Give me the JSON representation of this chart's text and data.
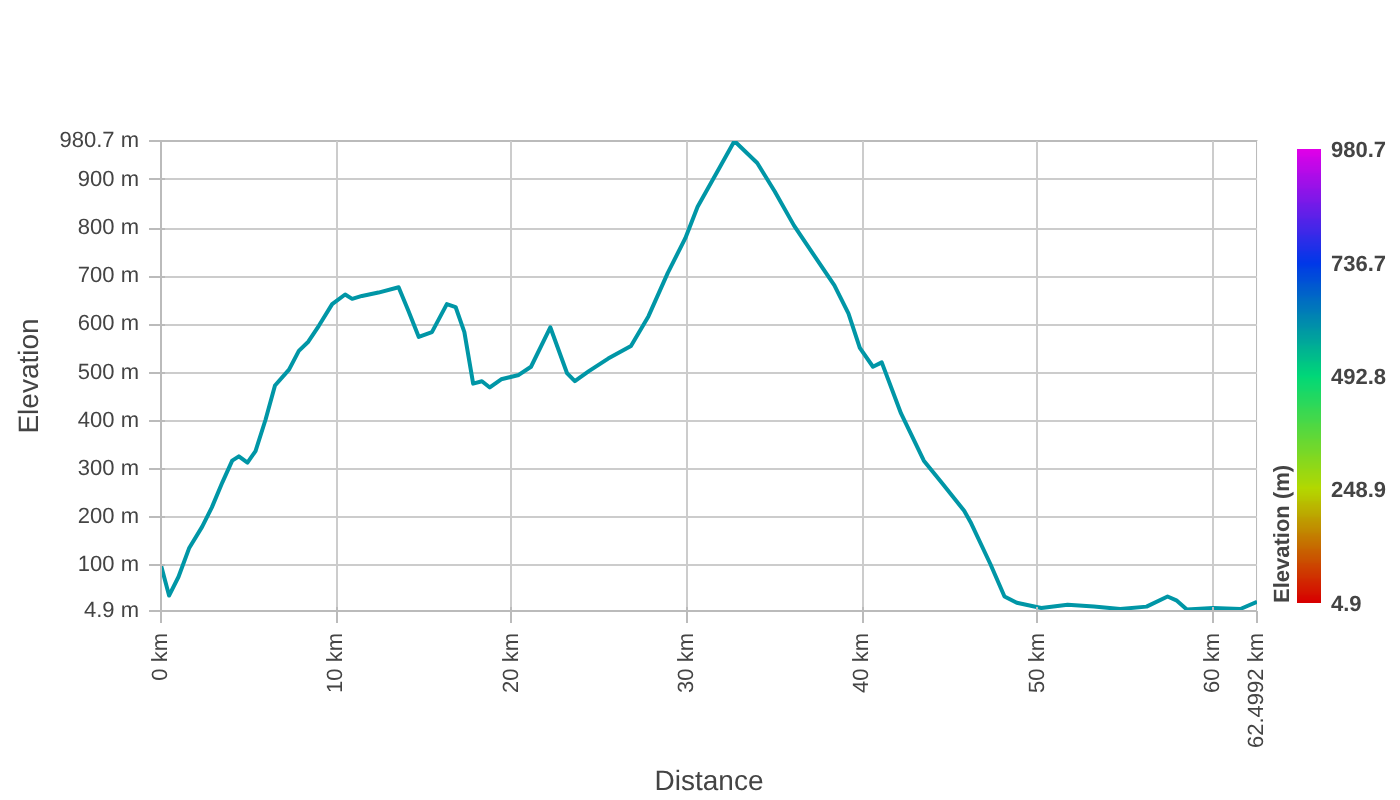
{
  "chart_data": {
    "type": "line",
    "xlabel": "Distance",
    "ylabel": "Elevation",
    "clabel": "Elevation (m)",
    "x": [
      0,
      0.46,
      1.0,
      1.6,
      2.35,
      2.9,
      3.5,
      4.06,
      4.44,
      4.93,
      5.39,
      5.96,
      6.5,
      7.3,
      7.86,
      8.4,
      9.0,
      9.76,
      10.5,
      10.9,
      11.46,
      12.4,
      13.55,
      14.1,
      14.7,
      15.45,
      16.3,
      16.8,
      17.3,
      17.8,
      18.3,
      18.75,
      19.4,
      20.4,
      21.1,
      22.2,
      23.15,
      23.6,
      24.4,
      25.5,
      26.8,
      27.8,
      28.9,
      29.9,
      30.6,
      31.8,
      32.7,
      34.0,
      35.0,
      36.1,
      37.3,
      38.4,
      39.2,
      39.85,
      40.6,
      41.1,
      42.2,
      43.5,
      44.5,
      45.8,
      46.2,
      47.3,
      48.1,
      48.8,
      50.2,
      51.7,
      53.2,
      54.7,
      56.2,
      57.4,
      57.9,
      58.5,
      60.0,
      61.55,
      62.4992
    ],
    "values": [
      100,
      37,
      76,
      135,
      180,
      220,
      272,
      317,
      326,
      313,
      337,
      402,
      473,
      506,
      545,
      564,
      597,
      642,
      662,
      653,
      659,
      666,
      677,
      629,
      574,
      584,
      642,
      636,
      584,
      477,
      482,
      469,
      486,
      495,
      512,
      594,
      499,
      482,
      503,
      529,
      555,
      617,
      707,
      779,
      844,
      922,
      980.7,
      935,
      876,
      805,
      740,
      681,
      623,
      551,
      512,
      521,
      415,
      317,
      272,
      213,
      187,
      102,
      35,
      22,
      11,
      18,
      14,
      9,
      14,
      35,
      27,
      8,
      11,
      9,
      24
    ],
    "color": "#0096a6",
    "clim": [
      4.9,
      980.7
    ],
    "cticks": [
      4.9,
      248.9,
      492.8,
      736.7,
      980.7
    ],
    "xlim": [
      0,
      62.4992
    ],
    "ylim": [
      4.9,
      980.7
    ],
    "xticks": [
      {
        "value": 0,
        "label": "0 km"
      },
      {
        "value": 10,
        "label": "10 km"
      },
      {
        "value": 20,
        "label": "20 km"
      },
      {
        "value": 30,
        "label": "30 km"
      },
      {
        "value": 40,
        "label": "40 km"
      },
      {
        "value": 50,
        "label": "50 km"
      },
      {
        "value": 60,
        "label": "60 km"
      },
      {
        "value": 62.4992,
        "label": "62.4992 km"
      }
    ],
    "yticks": [
      {
        "value": 4.9,
        "label": "4.9 m"
      },
      {
        "value": 100,
        "label": "100 m"
      },
      {
        "value": 200,
        "label": "200 m"
      },
      {
        "value": 300,
        "label": "300 m"
      },
      {
        "value": 400,
        "label": "400 m"
      },
      {
        "value": 500,
        "label": "500 m"
      },
      {
        "value": 600,
        "label": "600 m"
      },
      {
        "value": 700,
        "label": "700 m"
      },
      {
        "value": 800,
        "label": "800 m"
      },
      {
        "value": 900,
        "label": "900 m"
      },
      {
        "value": 980.7,
        "label": "980.7 m"
      }
    ],
    "grid": true
  }
}
